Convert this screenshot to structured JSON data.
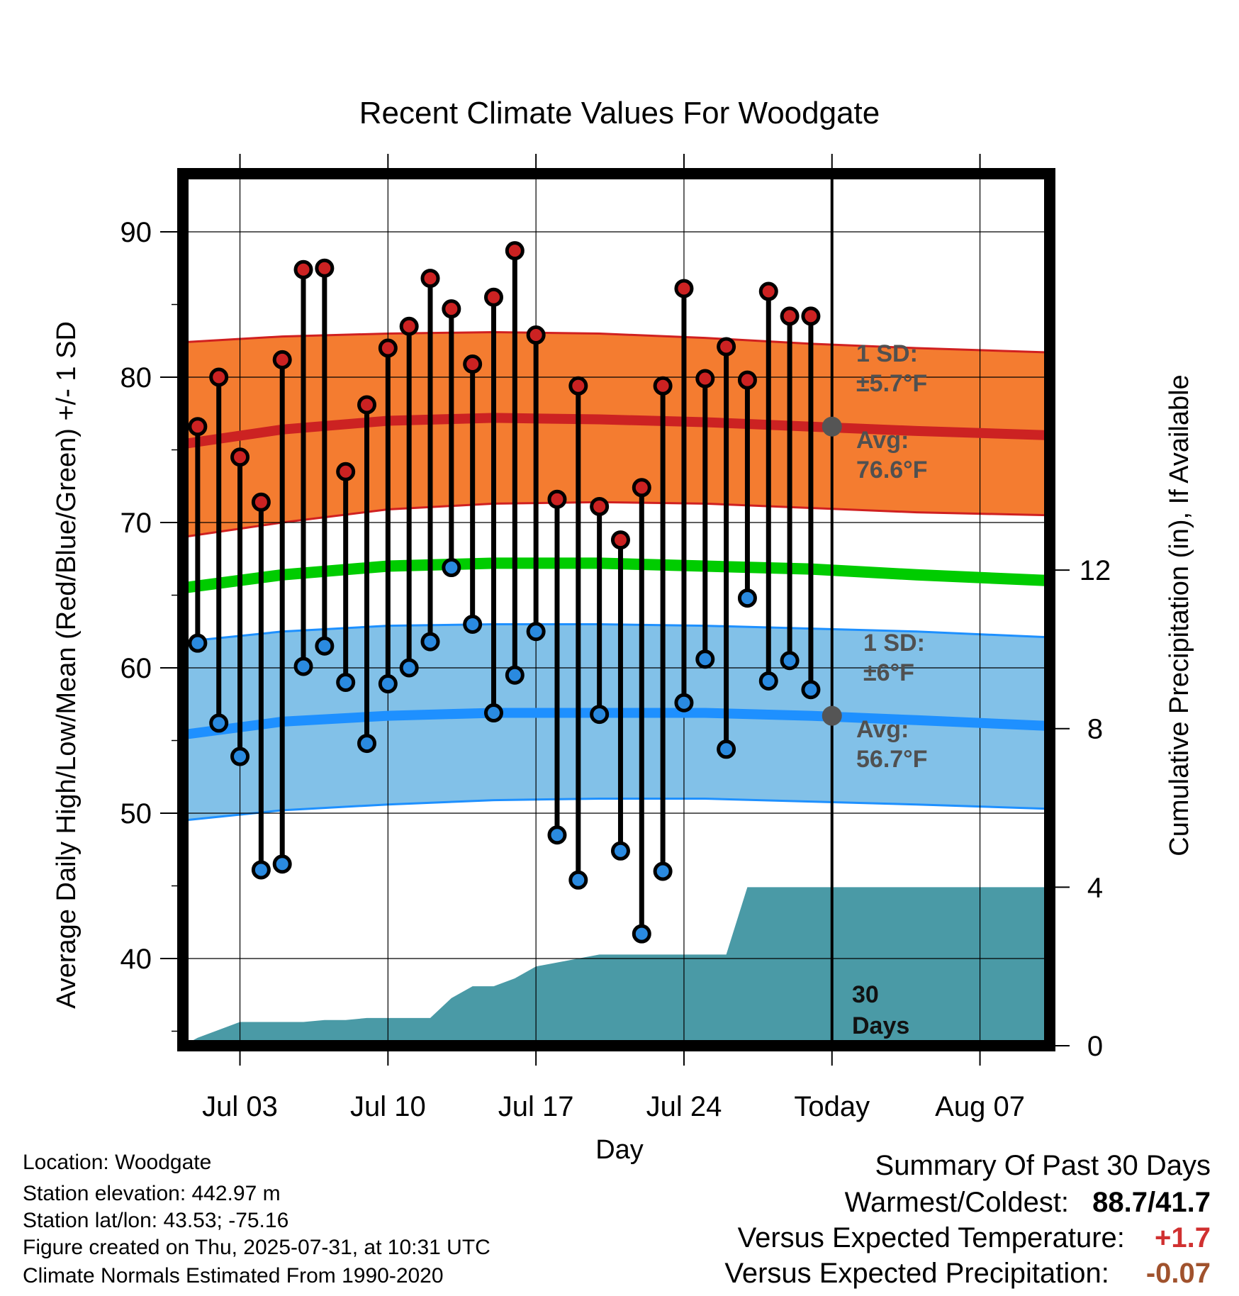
{
  "chart_data": {
    "type": "line",
    "title": "Recent Climate Values For Woodgate",
    "xlabel": "Day",
    "ylabel": "Average Daily High/Low/Mean (Red/Blue/Green) +/- 1 SD",
    "y2label": "Cumulative Precipitation (in), If Available",
    "ylim": [
      34.0,
      94.0
    ],
    "y2lim": [
      0,
      22
    ],
    "x_tick_labels": [
      "Jul 03",
      "Jul 10",
      "Jul 17",
      "Jul 24",
      "Today",
      "Aug 07"
    ],
    "x_tick_days": [
      3,
      10,
      17,
      24,
      31,
      38
    ],
    "xlim_days": [
      0.3,
      41.3
    ],
    "y_ticks": [
      40,
      50,
      60,
      70,
      80,
      90
    ],
    "y2_ticks": [
      0,
      4,
      8,
      12
    ],
    "today_day": 31,
    "days": [
      1,
      2,
      3,
      4,
      5,
      6,
      7,
      8,
      9,
      10,
      11,
      12,
      13,
      14,
      15,
      16,
      17,
      18,
      19,
      20,
      21,
      22,
      23,
      24,
      25,
      26,
      27,
      28,
      29,
      30
    ],
    "series": [
      {
        "name": "High",
        "color": "#cc2222",
        "values": [
          76.6,
          80.0,
          74.5,
          71.4,
          81.2,
          87.4,
          87.5,
          73.5,
          78.1,
          82.0,
          83.5,
          86.8,
          84.7,
          80.9,
          85.5,
          88.7,
          82.9,
          71.6,
          79.4,
          71.1,
          68.8,
          72.4,
          79.4,
          86.1,
          79.9,
          82.1,
          79.8,
          85.9,
          84.2,
          84.2
        ]
      },
      {
        "name": "Low",
        "color": "#2a8ae0",
        "values": [
          61.7,
          56.2,
          53.9,
          46.1,
          46.5,
          60.1,
          61.5,
          59.0,
          54.8,
          58.9,
          60.0,
          61.8,
          66.9,
          63.0,
          56.9,
          59.5,
          62.5,
          48.5,
          45.4,
          56.8,
          47.4,
          41.7,
          46.0,
          57.6,
          60.6,
          54.4,
          64.8,
          59.1,
          60.5,
          58.5
        ]
      },
      {
        "name": "Normal High",
        "color": "#cc2222",
        "x": [
          0.3,
          5,
          10,
          15,
          20,
          25,
          30,
          35,
          41.3
        ],
        "values": [
          75.4,
          76.4,
          77.0,
          77.2,
          77.1,
          76.9,
          76.6,
          76.3,
          76.0
        ]
      },
      {
        "name": "Normal High +/- 1 SD upper",
        "values": [
          82.4,
          82.8,
          83.0,
          83.1,
          83.0,
          82.7,
          82.3,
          82.0,
          81.7
        ]
      },
      {
        "name": "Normal High +/- 1 SD lower",
        "values": [
          69.0,
          70.0,
          70.9,
          71.3,
          71.4,
          71.3,
          71.0,
          70.7,
          70.5
        ]
      },
      {
        "name": "Normal Mean",
        "color": "#00cc00",
        "values": [
          65.5,
          66.4,
          67.0,
          67.2,
          67.2,
          67.0,
          66.8,
          66.4,
          66.0
        ]
      },
      {
        "name": "Normal Low",
        "color": "#1e90ff",
        "values": [
          55.4,
          56.3,
          56.7,
          56.9,
          56.9,
          56.9,
          56.7,
          56.4,
          56.0
        ]
      },
      {
        "name": "Normal Low +/- 1 SD upper",
        "values": [
          61.8,
          62.5,
          62.9,
          63.0,
          63.0,
          62.9,
          62.7,
          62.5,
          62.1
        ]
      },
      {
        "name": "Normal Low +/- 1 SD lower",
        "values": [
          49.5,
          50.2,
          50.6,
          50.9,
          51.0,
          51.0,
          50.8,
          50.6,
          50.3
        ]
      },
      {
        "name": "Cumulative Precipitation",
        "color": "#4a9aa6",
        "x": [
          0.3,
          1,
          2,
          3,
          4,
          5,
          6,
          7,
          8,
          9,
          10,
          11,
          12,
          13,
          14,
          15,
          16,
          17,
          18,
          19,
          20,
          21,
          22,
          23,
          24,
          25,
          26,
          27,
          28,
          29,
          30,
          31,
          41.3
        ],
        "values": [
          0,
          0.2,
          0.4,
          0.6,
          0.6,
          0.6,
          0.6,
          0.65,
          0.65,
          0.7,
          0.7,
          0.7,
          0.7,
          1.2,
          1.5,
          1.5,
          1.7,
          2.0,
          2.1,
          2.2,
          2.3,
          2.3,
          2.3,
          2.3,
          2.3,
          2.3,
          2.3,
          4.0,
          4.0,
          4.0,
          4.0,
          4.0,
          4.0
        ]
      }
    ],
    "annotations": {
      "high_sd_line1": "1 SD:",
      "high_sd_line2": "±5.7°F",
      "high_avg_line1": "Avg:",
      "high_avg_line2": "76.6°F",
      "low_sd_line1": "1 SD:",
      "low_sd_line2": "±6°F",
      "low_avg_line1": "Avg:",
      "low_avg_line2": "56.7°F",
      "days_line1": "30",
      "days_line2": "Days"
    },
    "grid": true
  },
  "info": {
    "location": "Location: Woodgate",
    "elevation": "Station elevation: 442.97 m",
    "latlon": "Station lat/lon: 43.53; -75.16",
    "created": "Figure created on Thu, 2025-07-31, at 10:31 UTC",
    "normals": "Climate Normals Estimated From 1990-2020"
  },
  "summary": {
    "title": "Summary Of Past 30 Days",
    "warm_label": "Warmest/Coldest:",
    "warm_value": "88.7/41.7",
    "temp_label": "Versus Expected Temperature:",
    "temp_value": "+1.7",
    "temp_color": "#d03030",
    "precip_label": "Versus Expected Precipitation:",
    "precip_value": "-0.07",
    "precip_color": "#a0522d"
  }
}
